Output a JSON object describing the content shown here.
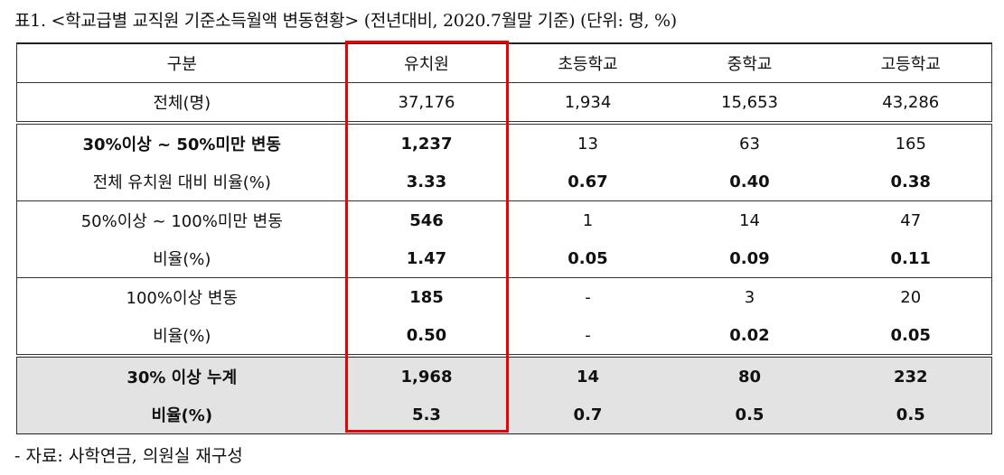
{
  "caption": "표1. <학교급별 교직원 기준소득월액 변동현황> (전년대비, 2020.7월말 기준) (단위: 명, %)",
  "table": {
    "header": [
      "구분",
      "유치원",
      "초등학교",
      "중학교",
      "고등학교"
    ],
    "rows": [
      [
        "전체(명)",
        "37,176",
        "1,934",
        "15,653",
        "43,286"
      ],
      [
        "30%이상 ~ 50%미만 변동",
        "1,237",
        "13",
        "63",
        "165"
      ],
      [
        "전체 유치원 대비 비율(%)",
        "3.33",
        "0.67",
        "0.40",
        "0.38"
      ],
      [
        "50%이상 ~ 100%미만 변동",
        "546",
        "1",
        "14",
        "47"
      ],
      [
        "비율(%)",
        "1.47",
        "0.05",
        "0.09",
        "0.11"
      ],
      [
        "100%이상 변동",
        "185",
        "-",
        "3",
        "20"
      ],
      [
        "비율(%)",
        "0.50",
        "-",
        "0.02",
        "0.05"
      ],
      [
        "30% 이상 누계",
        "1,968",
        "14",
        "80",
        "232"
      ],
      [
        "비율(%)",
        "5.3",
        "0.7",
        "0.5",
        "0.5"
      ]
    ]
  },
  "note": "- 자료: 사학연금, 의원실 재구성"
}
